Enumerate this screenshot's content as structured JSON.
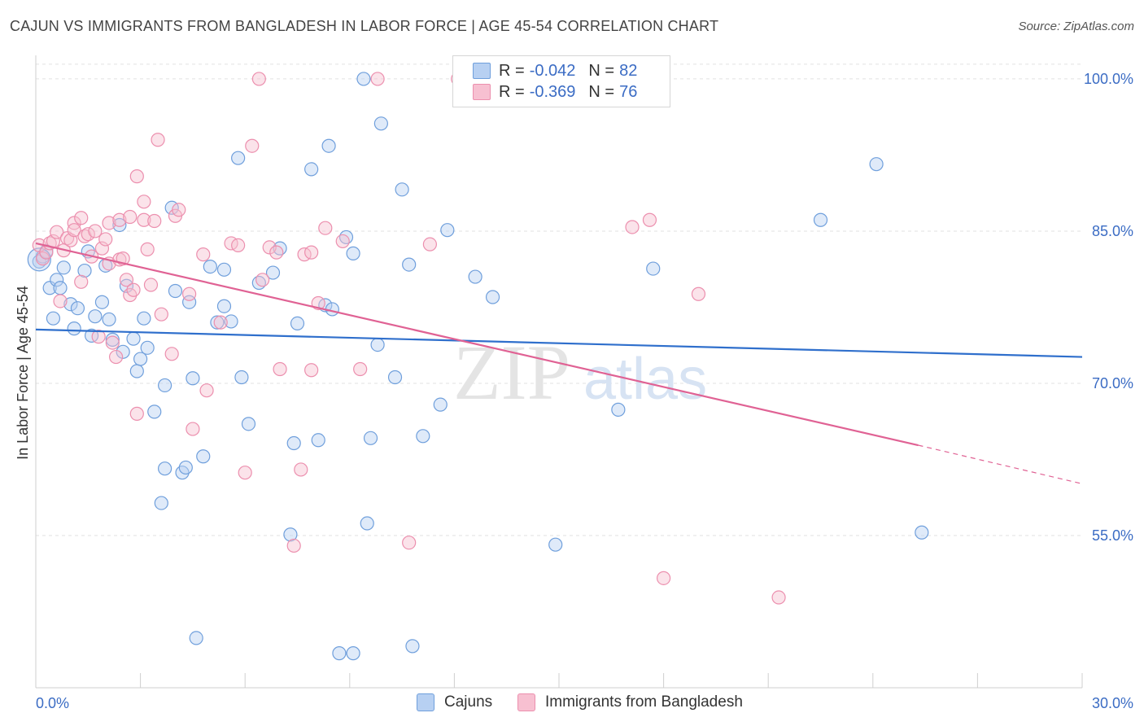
{
  "header": {
    "title": "CAJUN VS IMMIGRANTS FROM BANGLADESH IN LABOR FORCE | AGE 45-54 CORRELATION CHART",
    "source": "Source: ZipAtlas.com"
  },
  "watermark": {
    "zip": "ZIP",
    "atlas": "atlas"
  },
  "legend_top": {
    "rows": [
      {
        "r_label": "R =",
        "r_value": "-0.042",
        "n_label": "N =",
        "n_value": "82"
      },
      {
        "r_label": "R =",
        "r_value": "-0.369",
        "n_label": "N =",
        "n_value": "76"
      }
    ]
  },
  "legend_bottom": {
    "series_a": "Cajuns",
    "series_b": "Immigrants from Bangladesh"
  },
  "colors": {
    "cajun_fill": "#b7d0f2",
    "cajun_stroke": "#6f9fdc",
    "cajun_line": "#2f6fcc",
    "bangla_fill": "#f7c0d1",
    "bangla_stroke": "#ec8fae",
    "bangla_line": "#e06294",
    "tick_label": "#3b6cc4",
    "grid": "#e2e2e2"
  },
  "chart_data": {
    "type": "scatter",
    "title": "CAJUN VS IMMIGRANTS FROM BANGLADESH IN LABOR FORCE | AGE 45-54 CORRELATION CHART",
    "xlabel": "",
    "ylabel": "In Labor Force | Age 45-54",
    "xlim": [
      0,
      30
    ],
    "ylim": [
      40,
      102
    ],
    "x_tick_labels": [
      "0.0%",
      "30.0%"
    ],
    "y_ticks": [
      55,
      70,
      85,
      100
    ],
    "y_tick_labels": [
      "55.0%",
      "70.0%",
      "85.0%",
      "100.0%"
    ],
    "grid": true,
    "series": [
      {
        "name": "Cajuns",
        "r": -0.042,
        "n": 82,
        "trend": {
          "x": [
            0,
            30
          ],
          "y": [
            75.3,
            72.6
          ],
          "style": "solid"
        },
        "points": [
          [
            0.1,
            82.0
          ],
          [
            0.2,
            82.5
          ],
          [
            0.3,
            83.0
          ],
          [
            0.4,
            79.4
          ],
          [
            0.5,
            76.4
          ],
          [
            0.6,
            80.2
          ],
          [
            0.7,
            79.4
          ],
          [
            0.8,
            81.4
          ],
          [
            1.0,
            77.8
          ],
          [
            1.1,
            75.4
          ],
          [
            1.2,
            77.4
          ],
          [
            1.4,
            81.1
          ],
          [
            1.5,
            83.0
          ],
          [
            1.6,
            74.7
          ],
          [
            1.7,
            76.6
          ],
          [
            1.9,
            78.0
          ],
          [
            2.0,
            81.6
          ],
          [
            2.1,
            76.3
          ],
          [
            2.2,
            74.3
          ],
          [
            2.4,
            85.6
          ],
          [
            2.5,
            73.1
          ],
          [
            2.6,
            79.6
          ],
          [
            2.8,
            74.4
          ],
          [
            2.9,
            71.2
          ],
          [
            3.0,
            72.4
          ],
          [
            3.1,
            76.4
          ],
          [
            3.2,
            73.5
          ],
          [
            3.4,
            67.2
          ],
          [
            3.6,
            58.2
          ],
          [
            3.7,
            61.6
          ],
          [
            3.7,
            69.8
          ],
          [
            3.9,
            87.3
          ],
          [
            4.0,
            79.1
          ],
          [
            4.2,
            61.2
          ],
          [
            4.3,
            61.7
          ],
          [
            4.4,
            78.0
          ],
          [
            4.5,
            70.5
          ],
          [
            4.6,
            44.9
          ],
          [
            4.8,
            62.8
          ],
          [
            5.0,
            81.5
          ],
          [
            5.2,
            76.0
          ],
          [
            5.4,
            81.2
          ],
          [
            5.4,
            77.6
          ],
          [
            5.6,
            76.1
          ],
          [
            5.8,
            92.2
          ],
          [
            5.9,
            70.6
          ],
          [
            6.1,
            66.0
          ],
          [
            6.4,
            79.9
          ],
          [
            6.8,
            80.9
          ],
          [
            7.0,
            83.3
          ],
          [
            7.3,
            55.1
          ],
          [
            7.4,
            64.1
          ],
          [
            7.5,
            75.9
          ],
          [
            7.9,
            91.1
          ],
          [
            8.1,
            64.4
          ],
          [
            8.3,
            77.7
          ],
          [
            8.4,
            93.4
          ],
          [
            8.5,
            77.3
          ],
          [
            8.7,
            43.4
          ],
          [
            8.9,
            84.4
          ],
          [
            9.1,
            82.8
          ],
          [
            9.1,
            43.4
          ],
          [
            9.4,
            100.0
          ],
          [
            9.5,
            56.2
          ],
          [
            9.6,
            64.6
          ],
          [
            9.8,
            73.8
          ],
          [
            9.9,
            95.6
          ],
          [
            10.3,
            70.6
          ],
          [
            10.5,
            89.1
          ],
          [
            10.7,
            81.7
          ],
          [
            10.8,
            44.1
          ],
          [
            11.1,
            64.8
          ],
          [
            11.6,
            67.9
          ],
          [
            11.8,
            85.1
          ],
          [
            12.6,
            80.5
          ],
          [
            13.1,
            78.5
          ],
          [
            14.9,
            54.1
          ],
          [
            16.7,
            67.4
          ],
          [
            17.7,
            81.3
          ],
          [
            22.5,
            86.1
          ],
          [
            24.1,
            91.6
          ],
          [
            25.4,
            55.3
          ]
        ]
      },
      {
        "name": "Immigrants from Bangladesh",
        "r": -0.369,
        "n": 76,
        "trend": {
          "x": [
            0,
            25.3
          ],
          "y": [
            83.8,
            63.9
          ],
          "dashed_extension": {
            "x": [
              25.3,
              30
            ],
            "y": [
              63.9,
              60.1
            ]
          },
          "style": "solid"
        },
        "points": [
          [
            0.1,
            83.6
          ],
          [
            0.2,
            82.3
          ],
          [
            0.3,
            82.9
          ],
          [
            0.4,
            83.8
          ],
          [
            0.5,
            84.0
          ],
          [
            0.6,
            84.9
          ],
          [
            0.7,
            78.1
          ],
          [
            0.8,
            83.1
          ],
          [
            0.9,
            84.3
          ],
          [
            1.0,
            84.1
          ],
          [
            1.1,
            85.8
          ],
          [
            1.1,
            85.1
          ],
          [
            1.3,
            80.0
          ],
          [
            1.3,
            86.3
          ],
          [
            1.4,
            84.5
          ],
          [
            1.5,
            84.7
          ],
          [
            1.6,
            82.5
          ],
          [
            1.7,
            85.0
          ],
          [
            1.8,
            74.6
          ],
          [
            1.9,
            83.3
          ],
          [
            2.0,
            84.2
          ],
          [
            2.1,
            81.8
          ],
          [
            2.1,
            85.8
          ],
          [
            2.2,
            74.0
          ],
          [
            2.3,
            72.6
          ],
          [
            2.4,
            86.1
          ],
          [
            2.4,
            82.2
          ],
          [
            2.5,
            82.3
          ],
          [
            2.6,
            80.2
          ],
          [
            2.7,
            78.7
          ],
          [
            2.7,
            86.4
          ],
          [
            2.8,
            79.2
          ],
          [
            2.9,
            67.0
          ],
          [
            2.9,
            90.4
          ],
          [
            3.1,
            86.1
          ],
          [
            3.1,
            87.9
          ],
          [
            3.2,
            83.2
          ],
          [
            3.3,
            79.7
          ],
          [
            3.4,
            86.0
          ],
          [
            3.5,
            94.0
          ],
          [
            3.6,
            76.8
          ],
          [
            3.9,
            72.9
          ],
          [
            4.0,
            86.5
          ],
          [
            4.1,
            87.1
          ],
          [
            4.4,
            78.8
          ],
          [
            4.5,
            65.5
          ],
          [
            4.8,
            82.7
          ],
          [
            4.9,
            69.3
          ],
          [
            5.3,
            76.0
          ],
          [
            5.6,
            83.8
          ],
          [
            5.8,
            83.6
          ],
          [
            6.0,
            61.2
          ],
          [
            6.2,
            93.4
          ],
          [
            6.5,
            80.2
          ],
          [
            6.7,
            83.4
          ],
          [
            6.9,
            82.9
          ],
          [
            7.0,
            71.4
          ],
          [
            7.4,
            54.0
          ],
          [
            7.6,
            61.5
          ],
          [
            7.7,
            82.7
          ],
          [
            7.9,
            82.9
          ],
          [
            7.9,
            71.3
          ],
          [
            8.1,
            77.9
          ],
          [
            8.3,
            85.3
          ],
          [
            8.8,
            84.0
          ],
          [
            9.3,
            71.4
          ],
          [
            9.8,
            100.0
          ],
          [
            10.7,
            54.3
          ],
          [
            11.3,
            83.7
          ],
          [
            17.1,
            85.4
          ],
          [
            17.6,
            86.1
          ],
          [
            18.0,
            50.8
          ],
          [
            19.0,
            78.8
          ],
          [
            21.3,
            48.9
          ],
          [
            6.4,
            100.0
          ],
          [
            12.1,
            100.0
          ]
        ]
      }
    ]
  }
}
